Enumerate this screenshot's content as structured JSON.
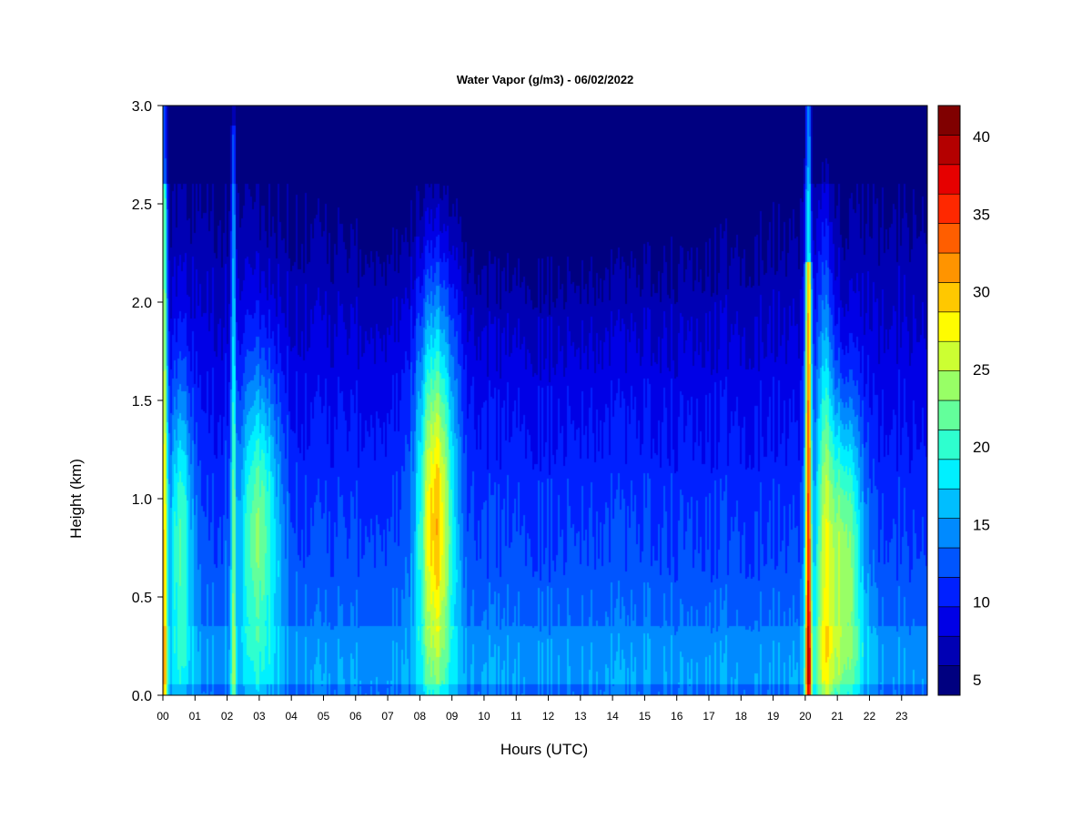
{
  "chart_data": {
    "type": "heatmap",
    "title": "Water Vapor (g/m3) - 06/02/2022",
    "xlabel": "Hours (UTC)",
    "ylabel": "Height (km)",
    "x_range": [
      0,
      23.8
    ],
    "y_range": [
      0,
      3.0
    ],
    "x_ticks": [
      "00",
      "01",
      "02",
      "03",
      "04",
      "05",
      "06",
      "07",
      "08",
      "09",
      "10",
      "11",
      "12",
      "13",
      "14",
      "15",
      "16",
      "17",
      "18",
      "19",
      "20",
      "21",
      "22",
      "23"
    ],
    "y_ticks": [
      "0.0",
      "0.5",
      "1.0",
      "1.5",
      "2.0",
      "2.5",
      "3.0"
    ],
    "grid": false,
    "colorbar": {
      "min": 4,
      "max": 42,
      "step": 2.5,
      "tick_values": [
        5,
        10,
        15,
        20,
        25,
        30,
        35,
        40
      ],
      "tick_labels": [
        "5",
        "10",
        "15",
        "20",
        "25",
        "30",
        "35",
        "40"
      ],
      "colors": [
        "#000080",
        "#0000B4",
        "#0000E6",
        "#0020FF",
        "#0055FF",
        "#008AFF",
        "#00BEFF",
        "#00F0FF",
        "#2EFFCF",
        "#63FF9B",
        "#98FF66",
        "#CCFF32",
        "#FFFC00",
        "#FFC800",
        "#FF9400",
        "#FF5E00",
        "#FF2800",
        "#E60000",
        "#B40000",
        "#800000"
      ]
    },
    "description_points": [
      {
        "hour": 0.5,
        "height_km": 0.85,
        "value": 33
      },
      {
        "hour": 3.0,
        "height_km": 0.9,
        "value": 26
      },
      {
        "hour": 8.5,
        "height_km": 0.85,
        "value": 32
      },
      {
        "hour": 20.1,
        "height_km": 1.0,
        "value": 40
      },
      {
        "hour": 21.2,
        "height_km": 0.85,
        "value": 28
      },
      {
        "hour": 12.0,
        "height_km": 2.8,
        "value": 6
      }
    ]
  }
}
